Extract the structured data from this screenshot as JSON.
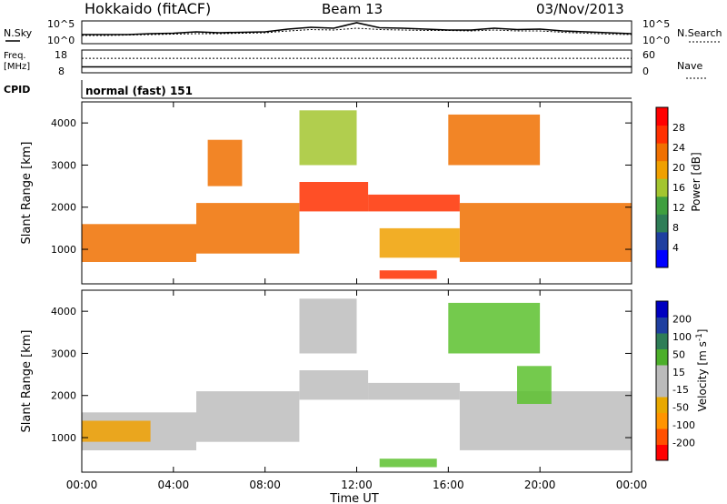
{
  "header": {
    "station": "Hokkaido (fitACF)",
    "beam": "Beam 13",
    "date": "03/Nov/2013"
  },
  "noise_panel": {
    "left_label": "N.Sky",
    "right_label": "N.Search",
    "left_ticks": [
      "10^5",
      "10^0"
    ],
    "right_ticks": [
      "10^5",
      "10^0"
    ]
  },
  "freq_panel": {
    "left_label_line1": "Freq.",
    "left_label_line2": "[MHz]",
    "right_label": "Nave",
    "left_ticks": [
      "18",
      "8"
    ],
    "right_ticks": [
      "60",
      "0"
    ]
  },
  "cpid_panel": {
    "label": "CPID",
    "text": "normal (fast) 151"
  },
  "colors": {
    "power_scale": [
      "#0000ff",
      "#1f3fa0",
      "#2e7d57",
      "#3f9f3f",
      "#a3c52f",
      "#f0a000",
      "#f07000",
      "#ff3000",
      "#ff0000"
    ],
    "velocity_scale": [
      "#ff0000",
      "#ff5000",
      "#ff9400",
      "#e8a800",
      "#bbbbbb",
      "#bbbbbb",
      "#4caf2a",
      "#2e7d57",
      "#1f3fa0",
      "#0000c0"
    ],
    "line": "#000000",
    "background": "#ffffff"
  },
  "chart_data": [
    {
      "type": "line",
      "name": "noise",
      "x_hours": [
        0,
        1,
        2,
        3,
        4,
        5,
        6,
        7,
        8,
        9,
        10,
        11,
        12,
        13,
        14,
        15,
        16,
        17,
        18,
        19,
        20,
        21,
        22,
        23,
        24
      ],
      "series": [
        {
          "name": "N.Sky",
          "values": [
            2,
            2,
            2,
            2.2,
            2.3,
            2.6,
            2.4,
            2.5,
            2.6,
            3.2,
            3.6,
            3.4,
            4.6,
            3.5,
            3.4,
            3.2,
            3.0,
            3.0,
            3.4,
            3.1,
            3.2,
            2.8,
            2.6,
            2.4,
            2.2
          ]
        },
        {
          "name": "N.Search",
          "values": [
            1.8,
            1.8,
            1.9,
            2,
            2.1,
            2.2,
            2.2,
            2.3,
            2.4,
            2.8,
            3.1,
            3.0,
            3.4,
            3.1,
            3.0,
            2.9,
            2.9,
            2.8,
            3.0,
            2.8,
            2.8,
            2.5,
            2.3,
            2.1,
            2.0
          ]
        }
      ],
      "ylim_log": [
        0,
        5
      ]
    },
    {
      "type": "line",
      "name": "frequency",
      "x_hours": [
        0,
        24
      ],
      "series": [
        {
          "name": "Freq.",
          "values": [
            10.6,
            10.6
          ]
        },
        {
          "name": "Nave",
          "values": [
            38,
            38
          ]
        }
      ],
      "ylim_left": [
        8,
        18
      ],
      "ylim_right": [
        0,
        60
      ]
    },
    {
      "type": "heatmap",
      "name": "power",
      "xlabel": "",
      "ylabel": "Slant Range [km]",
      "xlim": [
        0,
        24
      ],
      "ylim": [
        180,
        4500
      ],
      "y_ticks": [
        1000,
        2000,
        3000,
        4000
      ],
      "colorbar_label": "Power [dB]",
      "colorbar_ticks": [
        4,
        8,
        12,
        16,
        20,
        24,
        28
      ],
      "colorbar_range": [
        0,
        32
      ],
      "regions": [
        {
          "t0": 0.0,
          "t1": 5.0,
          "r0": 700,
          "r1": 1600,
          "value": 22
        },
        {
          "t0": 5.0,
          "t1": 9.5,
          "r0": 900,
          "r1": 2100,
          "value": 24
        },
        {
          "t0": 9.5,
          "t1": 12.5,
          "r0": 1900,
          "r1": 2600,
          "value": 26
        },
        {
          "t0": 12.5,
          "t1": 16.5,
          "r0": 1900,
          "r1": 2300,
          "value": 26
        },
        {
          "t0": 16.5,
          "t1": 24.0,
          "r0": 700,
          "r1": 2100,
          "value": 24
        },
        {
          "t0": 13.0,
          "t1": 15.5,
          "r0": 300,
          "r1": 500,
          "value": 28
        },
        {
          "t0": 13.0,
          "t1": 16.5,
          "r0": 800,
          "r1": 1500,
          "value": 20
        },
        {
          "t0": 9.5,
          "t1": 12.0,
          "r0": 3000,
          "r1": 4300,
          "value": 16
        },
        {
          "t0": 16.0,
          "t1": 20.0,
          "r0": 3000,
          "r1": 4200,
          "value": 22
        },
        {
          "t0": 5.5,
          "t1": 7.0,
          "r0": 2500,
          "r1": 3600,
          "value": 24
        }
      ]
    },
    {
      "type": "heatmap",
      "name": "velocity",
      "xlabel": "Time UT",
      "ylabel": "Slant Range [km]",
      "xlim": [
        0,
        24
      ],
      "ylim": [
        180,
        4500
      ],
      "y_ticks": [
        1000,
        2000,
        3000,
        4000
      ],
      "x_ticks": [
        "00:00",
        "04:00",
        "08:00",
        "12:00",
        "16:00",
        "20:00",
        "00:00"
      ],
      "colorbar_label": "Velocity [m s-1]",
      "colorbar_ticks": [
        200,
        100,
        50,
        15,
        -15,
        -50,
        -100,
        -200
      ],
      "regions": [
        {
          "t0": 0.0,
          "t1": 5.0,
          "r0": 700,
          "r1": 1600,
          "value": 0
        },
        {
          "t0": 5.0,
          "t1": 9.5,
          "r0": 900,
          "r1": 2100,
          "value": 0
        },
        {
          "t0": 9.5,
          "t1": 12.5,
          "r0": 1900,
          "r1": 2600,
          "value": 0
        },
        {
          "t0": 12.5,
          "t1": 16.5,
          "r0": 1900,
          "r1": 2300,
          "value": 0
        },
        {
          "t0": 16.5,
          "t1": 24.0,
          "r0": 700,
          "r1": 2100,
          "value": 0
        },
        {
          "t0": 13.0,
          "t1": 15.5,
          "r0": 300,
          "r1": 500,
          "value": 60
        },
        {
          "t0": 16.0,
          "t1": 20.0,
          "r0": 3000,
          "r1": 4200,
          "value": 60
        },
        {
          "t0": 19.0,
          "t1": 20.5,
          "r0": 1800,
          "r1": 2700,
          "value": 60
        },
        {
          "t0": 9.5,
          "t1": 12.0,
          "r0": 3000,
          "r1": 4300,
          "value": 0
        },
        {
          "t0": 0.0,
          "t1": 3.0,
          "r0": 900,
          "r1": 1400,
          "value": -40
        }
      ]
    }
  ]
}
